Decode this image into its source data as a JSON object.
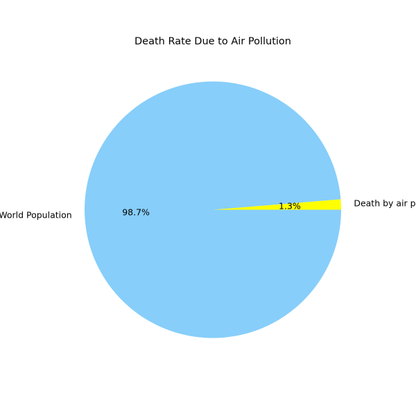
{
  "chart_data": {
    "type": "pie",
    "title": "Death Rate Due to Air Pollution",
    "slices": [
      {
        "label": "Death by air pollution",
        "value": 1.3,
        "pct_label": "1.3%",
        "color": "#ffff00"
      },
      {
        "label": "World Population",
        "value": 98.7,
        "pct_label": "98.7%",
        "color": "#87cefa"
      }
    ],
    "start_angle_deg": 0,
    "direction": "counterclockwise",
    "legend": "none"
  }
}
